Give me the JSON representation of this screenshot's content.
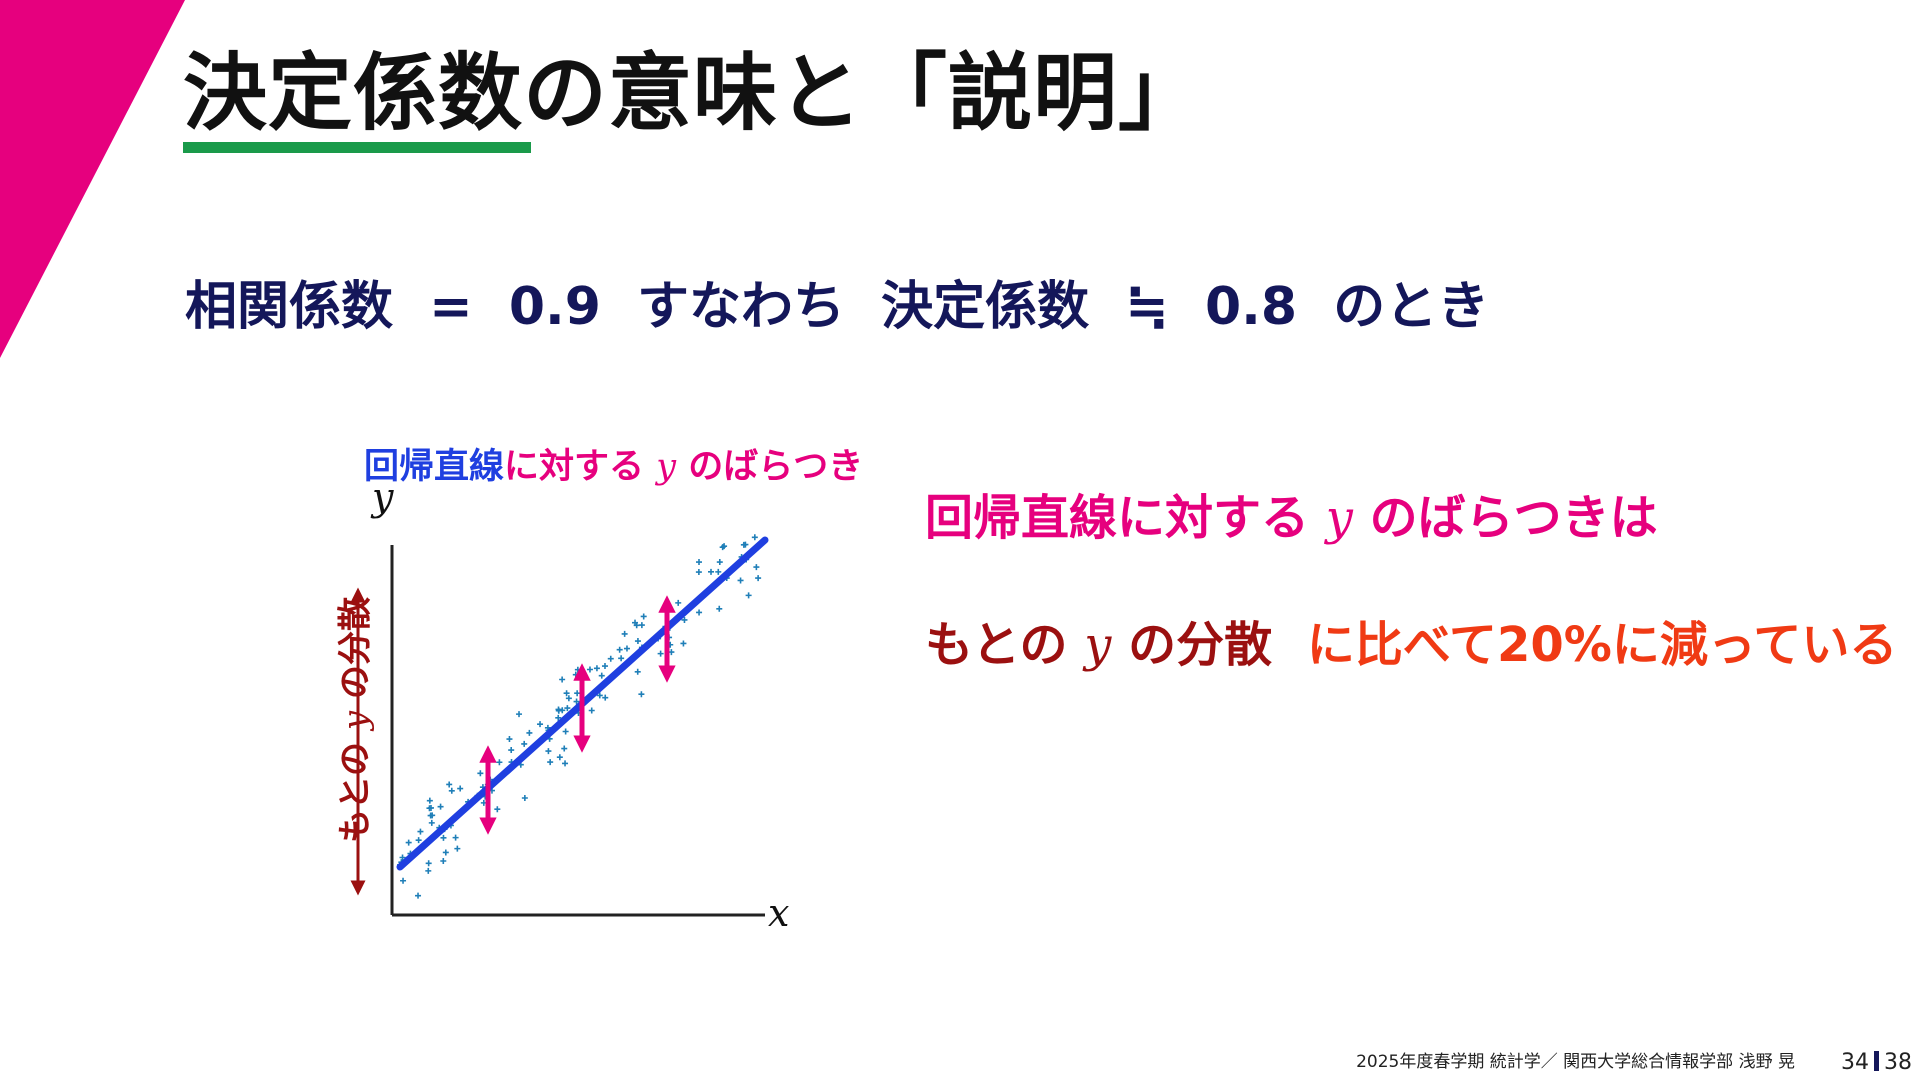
{
  "slide": {
    "title": "決定係数の意味と「説明」",
    "statement": {
      "corr_label": "相関係数",
      "equals": "=",
      "corr_value": "0.9",
      "connector": "すなわち",
      "det_label": "決定係数",
      "approx": "≒",
      "det_value": "0.8",
      "tail": "のとき"
    },
    "plot": {
      "caption_line": "回帰直線",
      "caption_rest": "に対する",
      "caption_var": "y",
      "caption_tail": "のばらつき",
      "y_axis_label": "y",
      "x_axis_label": "x",
      "vertical_label_pre": "もとの",
      "vertical_label_var": "y",
      "vertical_label_post": "の分散"
    },
    "conclusion": {
      "line1_pre": "回帰直線に対する",
      "line1_var": "y",
      "line1_post": "のばらつきは",
      "line2_pre": "もとの",
      "line2_var": "y",
      "line2_mid": "の分散",
      "line2_post": "に比べて20%に減っている"
    },
    "footer": {
      "text": "2025年度春学期  統計学／ 関西大学総合情報学部  浅野  晃",
      "page": "34",
      "total": "38"
    }
  },
  "colors": {
    "accent_magenta": "#e6007e",
    "title_underline": "#1a9a4a",
    "statement_navy": "#14175a",
    "regression_blue": "#1f3fe0",
    "variance_darkred": "#9b1010",
    "highlight_orange": "#f03a14",
    "scatter_teal": "#1f7fb8"
  }
}
